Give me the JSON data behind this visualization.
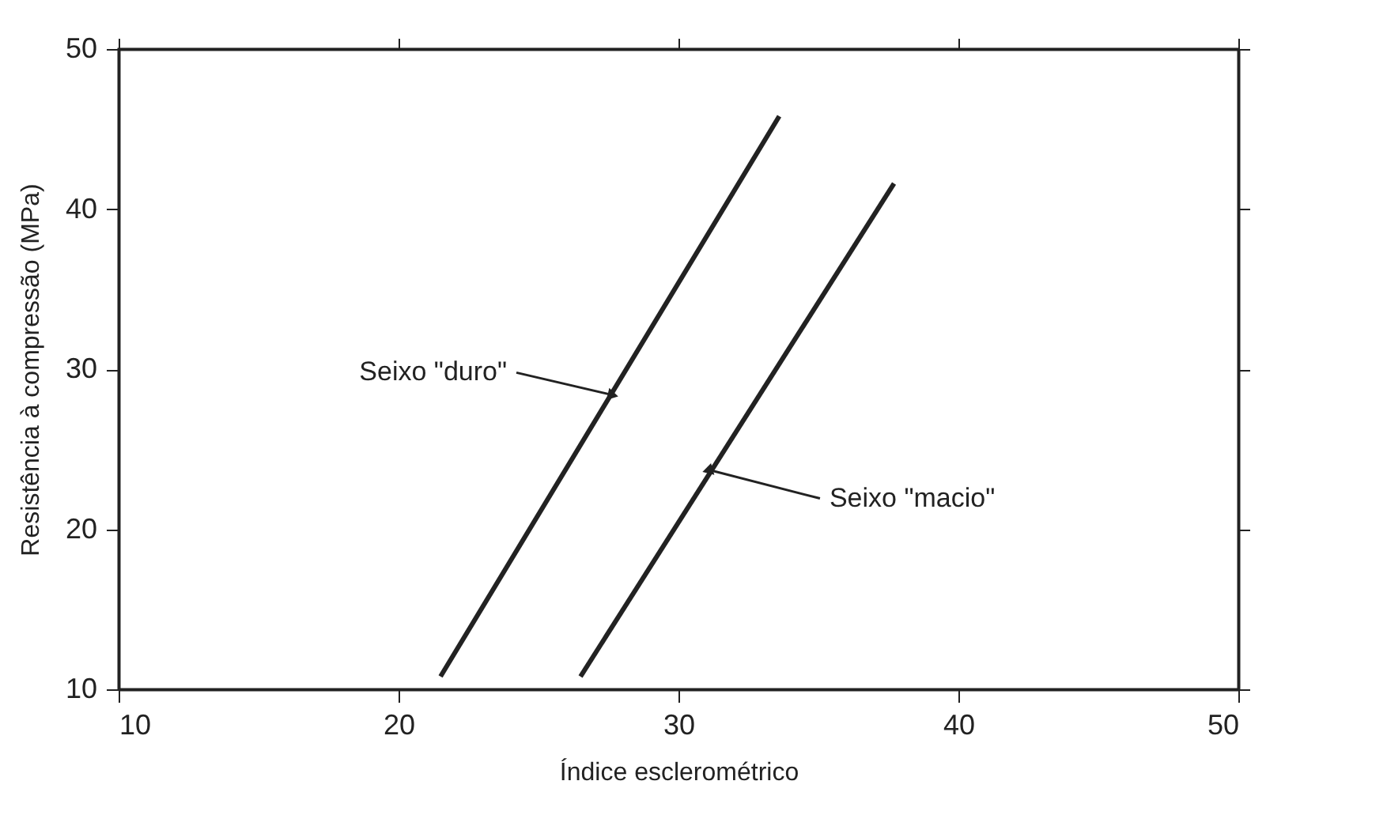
{
  "chart_data": {
    "type": "line",
    "xlabel": "Índice esclerométrico",
    "ylabel": "Resistência à compressão (MPa)",
    "xlim": [
      10,
      50
    ],
    "xticks": [
      10,
      20,
      30,
      40,
      50
    ],
    "ylim": [
      10,
      50
    ],
    "yticks": [
      10,
      20,
      30,
      40,
      50
    ],
    "grid": false,
    "marker": "none",
    "line_style": "solid",
    "series": [
      {
        "color": "#222222",
        "x": [
          21.5,
          33.6
        ],
        "values": [
          10.8,
          45.8
        ]
      },
      {
        "color": "#222222",
        "x": [
          26.5,
          37.7
        ],
        "values": [
          10.8,
          41.6
        ]
      }
    ],
    "annotations": [
      {
        "text": "Seixo \"duro\"",
        "x": 27.6,
        "y": 28.4
      },
      {
        "text": "Seixo \"macio\"",
        "x": 31.1,
        "y": 23.7
      }
    ]
  }
}
